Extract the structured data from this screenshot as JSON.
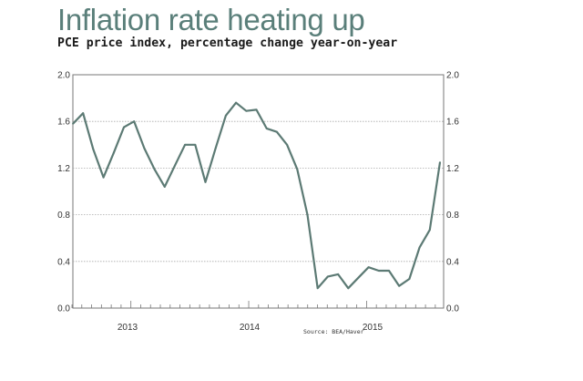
{
  "title": "Inflation rate heating up",
  "subtitle": "PCE price index, percentage change year-on-year",
  "source": "Source: BEA/Haver",
  "colors": {
    "title": "#5a7f7a",
    "line": "#5c7a74",
    "grid": "#aaaaaa",
    "axis": "#777777"
  },
  "chart_data": {
    "type": "line",
    "title": "Inflation rate heating up",
    "subtitle": "PCE price index, percentage change year-on-year",
    "xlabel": "",
    "ylabel": "",
    "x_ticks": [
      "2013",
      "2014",
      "2015"
    ],
    "y_ticks": [
      "0.0",
      "0.4",
      "0.8",
      "1.2",
      "1.6",
      "2.0"
    ],
    "ylim": [
      0,
      2.0
    ],
    "grid": true,
    "y_axis_both_sides": true,
    "series": [
      {
        "values": [
          1.58,
          1.67,
          1.36,
          1.12,
          1.33,
          1.55,
          1.6,
          1.37,
          1.19,
          1.04,
          1.22,
          1.4,
          1.4,
          1.08,
          1.37,
          1.65,
          1.76,
          1.69,
          1.7,
          1.54,
          1.51,
          1.4,
          1.19,
          0.8,
          0.17,
          0.27,
          0.29,
          0.17,
          0.26,
          0.35,
          0.32,
          0.32,
          0.19,
          0.25,
          0.52,
          0.67,
          1.25
        ]
      }
    ]
  }
}
